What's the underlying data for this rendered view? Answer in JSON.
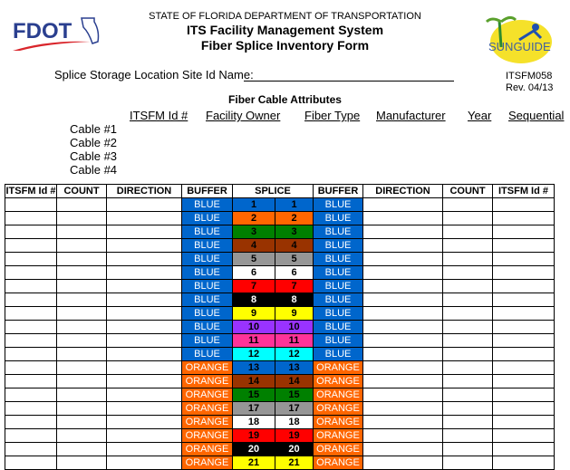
{
  "header": {
    "agency": "STATE OF FLORIDA DEPARTMENT OF TRANSPORTATION",
    "system": "ITS Facility Management System",
    "form_title": "Fiber Splice Inventory Form",
    "logo_left": "FDOT",
    "logo_right": "SUNGUIDE"
  },
  "form": {
    "site_label": "Splice Storage Location Site Id Name:",
    "form_id": "ITSFM058",
    "revision": "Rev. 04/13"
  },
  "attributes": {
    "title": "Fiber Cable Attributes",
    "columns": [
      "ITSFM Id #",
      "Facility Owner",
      "Fiber Type",
      "Manufacturer",
      "Year",
      "Sequential"
    ],
    "cables": [
      "Cable #1",
      "Cable #2",
      "Cable #3",
      "Cable #4"
    ]
  },
  "table": {
    "headers": [
      "ITSFM Id #",
      "COUNT",
      "DIRECTION",
      "BUFFER",
      "SPLICE",
      "BUFFER",
      "DIRECTION",
      "COUNT",
      "ITSFM Id #"
    ],
    "buffer_colors": {
      "BLUE": "#0066CC",
      "ORANGE": "#FF6600"
    },
    "rows": [
      {
        "buffer": "BLUE",
        "fiber": "1",
        "color": "#0066CC",
        "text": "#000"
      },
      {
        "buffer": "BLUE",
        "fiber": "2",
        "color": "#FF6600",
        "text": "#000"
      },
      {
        "buffer": "BLUE",
        "fiber": "3",
        "color": "#008000",
        "text": "#000"
      },
      {
        "buffer": "BLUE",
        "fiber": "4",
        "color": "#993300",
        "text": "#000"
      },
      {
        "buffer": "BLUE",
        "fiber": "5",
        "color": "#969696",
        "text": "#000"
      },
      {
        "buffer": "BLUE",
        "fiber": "6",
        "color": "#FFFFFF",
        "text": "#000"
      },
      {
        "buffer": "BLUE",
        "fiber": "7",
        "color": "#FF0000",
        "text": "#000"
      },
      {
        "buffer": "BLUE",
        "fiber": "8",
        "color": "#000000",
        "text": "#fff"
      },
      {
        "buffer": "BLUE",
        "fiber": "9",
        "color": "#FFFF00",
        "text": "#000"
      },
      {
        "buffer": "BLUE",
        "fiber": "10",
        "color": "#9933FF",
        "text": "#000"
      },
      {
        "buffer": "BLUE",
        "fiber": "11",
        "color": "#FF3399",
        "text": "#000"
      },
      {
        "buffer": "BLUE",
        "fiber": "12",
        "color": "#00FFFF",
        "text": "#000"
      },
      {
        "buffer": "ORANGE",
        "fiber": "13",
        "color": "#0066CC",
        "text": "#000"
      },
      {
        "buffer": "ORANGE",
        "fiber": "14",
        "color": "#993300",
        "text": "#000"
      },
      {
        "buffer": "ORANGE",
        "fiber": "15",
        "color": "#008000",
        "text": "#000"
      },
      {
        "buffer": "ORANGE",
        "fiber": "17",
        "color": "#969696",
        "text": "#000"
      },
      {
        "buffer": "ORANGE",
        "fiber": "18",
        "color": "#FFFFFF",
        "text": "#000"
      },
      {
        "buffer": "ORANGE",
        "fiber": "19",
        "color": "#FF0000",
        "text": "#000"
      },
      {
        "buffer": "ORANGE",
        "fiber": "20",
        "color": "#000000",
        "text": "#fff"
      },
      {
        "buffer": "ORANGE",
        "fiber": "21",
        "color": "#FFFF00",
        "text": "#000"
      }
    ]
  }
}
